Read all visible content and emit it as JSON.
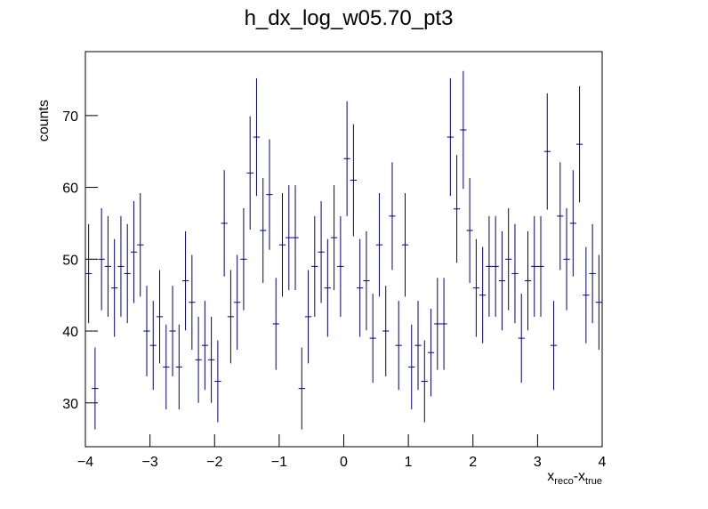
{
  "chart_data": {
    "type": "histogram",
    "title": "h_dx_log_w05.70_pt3",
    "ylabel": "counts",
    "xlabel": [
      "x",
      "reco",
      "-x",
      "true"
    ],
    "color": "#00007f",
    "bins": [
      -4,
      -3.9,
      -3.8,
      -3.7,
      -3.6,
      -3.5,
      -3.4,
      -3.3,
      -3.2,
      -3.1,
      -3,
      -2.9,
      -2.8,
      -2.7,
      -2.6,
      -2.5,
      -2.4,
      -2.3,
      -2.2,
      -2.1,
      -2,
      -1.9,
      -1.8,
      -1.7,
      -1.6,
      -1.5,
      -1.4,
      -1.3,
      -1.2,
      -1.1,
      -1,
      -0.9,
      -0.8,
      -0.7,
      -0.6,
      -0.5,
      -0.4,
      -0.3,
      -0.2,
      -0.1,
      0,
      0.1,
      0.2,
      0.3,
      0.4,
      0.5,
      0.6,
      0.7,
      0.8,
      0.9,
      1,
      1.1,
      1.2,
      1.3,
      1.4,
      1.5,
      1.6,
      1.7,
      1.8,
      1.9,
      2,
      2.1,
      2.2,
      2.3,
      2.4,
      2.5,
      2.6,
      2.7,
      2.8,
      2.9,
      3,
      3.1,
      3.2,
      3.3,
      3.4,
      3.5,
      3.6,
      3.7,
      3.8,
      3.9,
      4
    ],
    "values": [
      48,
      32,
      50,
      49,
      46,
      49,
      48,
      51,
      52,
      40,
      38,
      42,
      35,
      40,
      35,
      47,
      44,
      36,
      38,
      36,
      33,
      55,
      42,
      44,
      50,
      62,
      67,
      54,
      59,
      41,
      52,
      53,
      53,
      32,
      42,
      49,
      51,
      46,
      53,
      49,
      64,
      61,
      46,
      47,
      39,
      52,
      40,
      56,
      38,
      52,
      35,
      38,
      33,
      37,
      41,
      41,
      67,
      57,
      68,
      54,
      46,
      45,
      49,
      49,
      47,
      50,
      48,
      39,
      47,
      49,
      49,
      65,
      38,
      56,
      50,
      55,
      66,
      45,
      48,
      44
    ],
    "errors": [
      6.9,
      5.7,
      7.1,
      7.0,
      6.8,
      7.0,
      6.9,
      7.1,
      7.2,
      6.3,
      6.2,
      6.5,
      5.9,
      6.3,
      5.9,
      6.9,
      6.6,
      6.0,
      6.2,
      6.0,
      5.7,
      7.4,
      6.5,
      6.6,
      7.1,
      7.9,
      8.2,
      7.3,
      7.7,
      6.4,
      7.2,
      7.3,
      7.3,
      5.7,
      6.5,
      7.0,
      7.1,
      6.8,
      7.3,
      7.0,
      8.0,
      7.8,
      6.8,
      6.9,
      6.2,
      7.2,
      6.3,
      7.5,
      6.2,
      7.2,
      5.9,
      6.2,
      5.7,
      6.1,
      6.4,
      6.4,
      8.2,
      7.5,
      8.2,
      7.3,
      6.8,
      6.7,
      7.0,
      7.0,
      6.9,
      7.1,
      6.9,
      6.2,
      6.9,
      7.0,
      7.0,
      8.1,
      6.2,
      7.5,
      7.1,
      7.4,
      8.1,
      6.7,
      6.9,
      6.6
    ],
    "xlim": [
      -4,
      4
    ],
    "ylim": [
      23.9,
      78.9
    ],
    "xticks": [
      {
        "value": -4,
        "label": "−4"
      },
      {
        "value": -3,
        "label": "−3"
      },
      {
        "value": -2,
        "label": "−2"
      },
      {
        "value": -1,
        "label": "−1"
      },
      0,
      1,
      2,
      3,
      4
    ],
    "yticks": [
      30,
      40,
      50,
      60,
      70
    ]
  }
}
